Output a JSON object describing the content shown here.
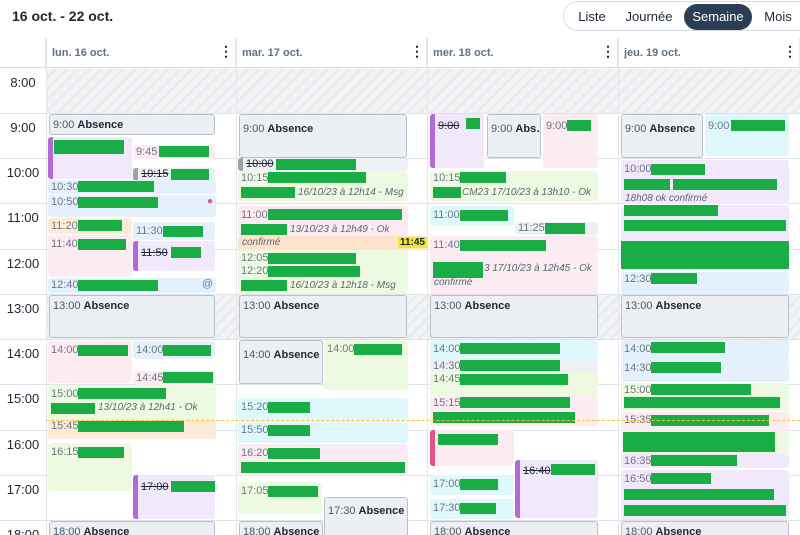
{
  "header": {
    "range": "16 oct. - 22 oct."
  },
  "views": {
    "list": "Liste",
    "day": "Journée",
    "week": "Semaine",
    "month": "Mois",
    "active": "Semaine"
  },
  "days": [
    "lun. 16 oct.",
    "mar. 17 oct.",
    "mer. 18 oct.",
    "jeu. 19 oct."
  ],
  "hours": [
    "8:00",
    "9:00",
    "10:00",
    "11:00",
    "12:00",
    "13:00",
    "14:00",
    "15:00",
    "16:00",
    "17:00",
    "18:00"
  ],
  "absence": "Absence",
  "colors": {
    "green_redaction": "#1aad45",
    "active_view": "#2b3e55",
    "now_line": "#f3c23a"
  },
  "events": {
    "mon": {
      "abs9": "9:00",
      "e945": "9:45",
      "e1015": "10:15",
      "e1030": "10:30",
      "e1050": "10:50",
      "e1120": "11:20",
      "e1130": "11:30",
      "e1140": "11:40",
      "e1150": "11:50",
      "e1240": "12:40",
      "abs13": "13:00",
      "e1400a": "14:00",
      "e1400b": "14:00",
      "e1445": "14:45",
      "e1500": "15:00",
      "sub1500": "13/10/23 à 12h41 - Ok",
      "e1545": "15:45",
      "e1615": "16:15",
      "e1700": "17:00",
      "abs18": "18:00"
    },
    "tue": {
      "abs9": "9:00",
      "e1000": "10:00",
      "e1015": "10:15",
      "sub1015": "16/10/23 à 12h14 - Msg",
      "e1100": "11:00",
      "sub1100": "13/10/23 à 12h49 - Ok",
      "conf": "confirmé",
      "badge": "11:45",
      "e1205": "12:05",
      "e1220": "12:20",
      "sub1220": "16/10/23 à 12h18 - Msg",
      "abs13": "13:00",
      "e1400a": "14:00",
      "e1400b": "14:00",
      "e1520": "15:20",
      "e1550": "15:50",
      "e1620": "16:20",
      "e1705": "17:05",
      "abs1730": "17:30",
      "abs18": "18:00"
    },
    "wed": {
      "e900a": "9:00",
      "abs9": "9:00",
      "e900b": "9:00",
      "e1015": "10:15",
      "sub1015": "CM23 17/10/23 à 13h10 - Ok",
      "e1100": "11:00",
      "e1125": "11:25",
      "e1140": "11:40",
      "sub1140": "3 17/10/23 à 12h45 - Ok",
      "conf": "confirmé",
      "abs13": "13:00",
      "e1400": "14:00",
      "e1430": "14:30",
      "e1445": "14:45",
      "e1515": "15:15",
      "e1640": "16:40",
      "e1700": "17:00",
      "e1730": "17:30",
      "abs18": "18:00"
    },
    "thu": {
      "abs9": "9:00",
      "e900": "9:00",
      "e1000": "10:00",
      "sub1000": "18h08 ok confirmé",
      "e1230": "12:30",
      "abs13": "13:00",
      "e1400": "14:00",
      "e1430": "14:30",
      "e1500": "15:00",
      "e1535": "15:35",
      "e1635": "16:35",
      "e1650": "16:50",
      "abs18": "18:00"
    }
  }
}
